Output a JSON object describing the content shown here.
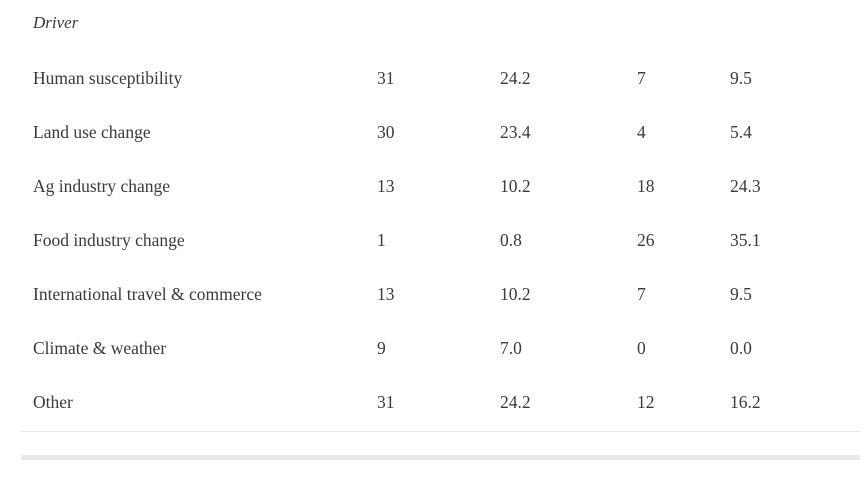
{
  "table": {
    "header": "Driver",
    "rows": [
      {
        "driver": "Human susceptibility",
        "values": [
          "31",
          "24.2",
          "7",
          "9.5"
        ]
      },
      {
        "driver": "Land use change",
        "values": [
          "30",
          "23.4",
          "4",
          "5.4"
        ]
      },
      {
        "driver": "Ag industry change",
        "values": [
          "13",
          "10.2",
          "18",
          "24.3"
        ]
      },
      {
        "driver": "Food industry change",
        "values": [
          "1",
          "0.8",
          "26",
          "35.1"
        ]
      },
      {
        "driver": "International travel & commerce",
        "values": [
          "13",
          "10.2",
          "7",
          "9.5"
        ]
      },
      {
        "driver": "Climate & weather",
        "values": [
          "9",
          "7.0",
          "0",
          "0.0"
        ]
      },
      {
        "driver": "Other",
        "values": [
          "31",
          "24.2",
          "12",
          "16.2"
        ]
      }
    ]
  },
  "colors": {
    "text": "#3a3a3a",
    "divider": "#e8e8e8",
    "scrollbar": "#e9e9e9",
    "background": "#ffffff"
  }
}
